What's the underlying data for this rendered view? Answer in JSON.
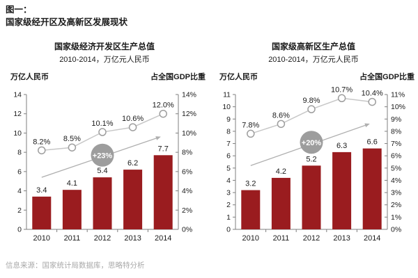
{
  "page": {
    "figure_label": "图一：",
    "figure_title": "国家级经开区及高新区发展现状",
    "source_note": "信息来源：国家统计局数据库，思略特分析"
  },
  "colors": {
    "bar": "#9A1C1F",
    "line": "#C7C7C7",
    "marker_stroke": "#9E9E9E",
    "marker_fill": "#FFFFFF",
    "badge": "#9D9D9D",
    "badge_text": "#FFFFFF",
    "arrow": "#AFAFAF",
    "axis": "#7F7F7F",
    "text": "#1A1A1A",
    "source_text": "#A9A9A9"
  },
  "chart_data": [
    {
      "type": "bar",
      "title": "国家级经济开发区生产总值",
      "subtitle": "2010-2014，万亿元人民币",
      "left_axis_label": "万亿人民币",
      "right_axis_label": "占全国GDP比重",
      "categories": [
        "2010",
        "2011",
        "2012",
        "2013",
        "2014"
      ],
      "series": [
        {
          "name": "万亿人民币",
          "type": "bar",
          "axis": "left",
          "values": [
            3.4,
            4.1,
            5.4,
            6.2,
            7.7
          ],
          "labels": [
            "3.4",
            "4.1",
            "5.4",
            "6.2",
            "7.7"
          ]
        },
        {
          "name": "占全国GDP比重",
          "type": "line",
          "axis": "right",
          "values": [
            8.2,
            8.5,
            10.1,
            10.6,
            12.0
          ],
          "labels": [
            "8.2%",
            "8.5%",
            "10.1%",
            "10.6%",
            "12.0%"
          ]
        }
      ],
      "left_axis": {
        "min": 0,
        "max": 14,
        "step": 2
      },
      "right_axis": {
        "min": 0,
        "max": 14,
        "step": 2,
        "suffix": "%"
      },
      "growth_annotation": {
        "label": "+23%",
        "badge_center": {
          "x_index": 2,
          "value": 7.7
        },
        "arrow_from": {
          "x_index": 0,
          "value": 5.4
        },
        "arrow_to": {
          "x_index": 3.9,
          "value": 9.6
        }
      },
      "grid": false,
      "legend": false
    },
    {
      "type": "bar",
      "title": "国家级高新区生产总值",
      "subtitle": "2010-2014，万亿元人民币",
      "left_axis_label": "万亿人民币",
      "right_axis_label": "占全国GDP比重",
      "categories": [
        "2010",
        "2011",
        "2012",
        "2013",
        "2014"
      ],
      "series": [
        {
          "name": "万亿人民币",
          "type": "bar",
          "axis": "left",
          "values": [
            3.2,
            4.2,
            5.2,
            6.3,
            6.6
          ],
          "labels": [
            "3.2",
            "4.2",
            "5.2",
            "6.3",
            "6.6"
          ]
        },
        {
          "name": "占全国GDP比重",
          "type": "line",
          "axis": "right",
          "values": [
            7.8,
            8.6,
            9.8,
            10.7,
            10.4
          ],
          "labels": [
            "7.8%",
            "8.6%",
            "9.8%",
            "10.7%",
            "10.4%"
          ]
        }
      ],
      "left_axis": {
        "min": 0,
        "max": 11,
        "step": 1
      },
      "right_axis": {
        "min": 0,
        "max": 11,
        "step": 1,
        "suffix": "%"
      },
      "growth_annotation": {
        "label": "+20%",
        "badge_center": {
          "x_index": 2,
          "value": 7.1
        },
        "arrow_from": {
          "x_index": 0,
          "value": 5.2
        },
        "arrow_to": {
          "x_index": 3.9,
          "value": 8.6
        }
      },
      "grid": false,
      "legend": false
    }
  ]
}
